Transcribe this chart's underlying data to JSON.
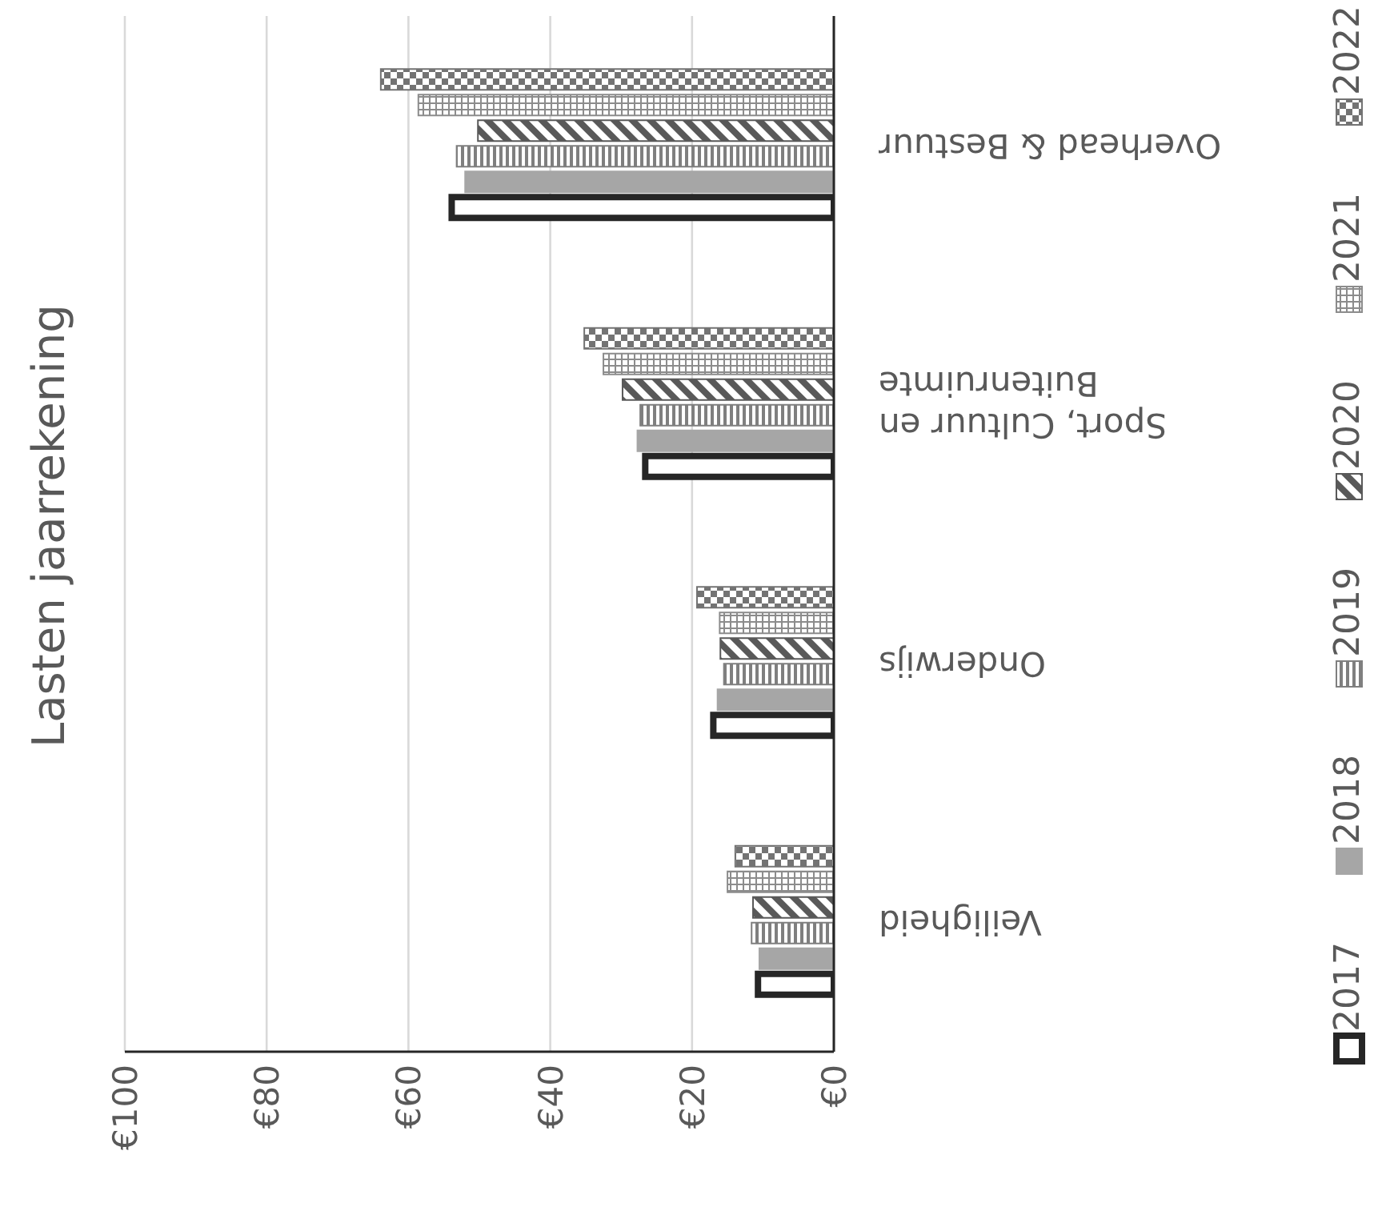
{
  "chart_data": {
    "type": "bar",
    "orientation": "horizontal",
    "title": "Lasten jaarrekening",
    "categories": [
      "Overhead & Bestuur",
      "Sport, Cultuur en Buitenruimte",
      "Onderwijs",
      "Veiligheid"
    ],
    "series": [
      {
        "name": "2017",
        "color": "#262626",
        "values": [
          53.9,
          26.6,
          17,
          10.7
        ]
      },
      {
        "name": "2018",
        "color": "#a6a6a6",
        "values": [
          52,
          27.7,
          16.4,
          10.5
        ]
      },
      {
        "name": "2019",
        "color": "#7f7f7f",
        "values": [
          53.2,
          27.3,
          15.5,
          11.6
        ]
      },
      {
        "name": "2020",
        "color": "#595959",
        "values": [
          50.2,
          29.8,
          16,
          11.4
        ]
      },
      {
        "name": "2021",
        "color": "#8c8c8c",
        "values": [
          58.6,
          32.5,
          16.1,
          15
        ]
      },
      {
        "name": "2022",
        "color": "#737373",
        "values": [
          63.9,
          35.2,
          19.3,
          13.9
        ]
      }
    ],
    "xlim": [
      100,
      0
    ],
    "xticks": [
      {
        "value": 100,
        "label": "€100"
      },
      {
        "value": 80,
        "label": "€80"
      },
      {
        "value": 60,
        "label": "€60"
      },
      {
        "value": 40,
        "label": "€40"
      },
      {
        "value": 20,
        "label": "€20"
      },
      {
        "value": 0,
        "label": "€0"
      }
    ],
    "grid": "x",
    "legend": "right"
  }
}
